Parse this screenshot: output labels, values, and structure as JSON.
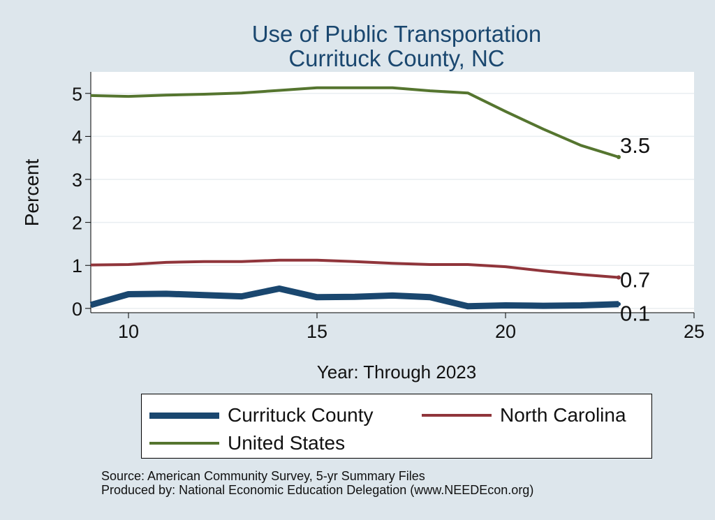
{
  "chart_data": {
    "type": "line",
    "title": "Use of Public Transportation",
    "subtitle": "Currituck County, NC",
    "xlabel": "Year: Through 2023",
    "ylabel": "Percent",
    "xlim": [
      9,
      25
    ],
    "ylim": [
      -0.1,
      5.5
    ],
    "xticks": [
      10,
      15,
      20,
      25
    ],
    "yticks": [
      0,
      1,
      2,
      3,
      4,
      5
    ],
    "grid": true,
    "legend_position": "bottom",
    "series": [
      {
        "name": "Currituck County",
        "color": "#1a476f",
        "width": 9,
        "x": [
          9,
          10,
          11,
          12,
          13,
          14,
          15,
          16,
          17,
          18,
          19,
          20,
          21,
          22,
          23
        ],
        "values": [
          0.08,
          0.33,
          0.34,
          0.31,
          0.28,
          0.46,
          0.26,
          0.27,
          0.3,
          0.26,
          0.05,
          0.07,
          0.06,
          0.07,
          0.1
        ],
        "end_label": "0.1"
      },
      {
        "name": "North Carolina",
        "color": "#90353b",
        "width": 4,
        "x": [
          9,
          10,
          11,
          12,
          13,
          14,
          15,
          16,
          17,
          18,
          19,
          20,
          21,
          22,
          23
        ],
        "values": [
          1.01,
          1.02,
          1.07,
          1.09,
          1.09,
          1.12,
          1.12,
          1.09,
          1.05,
          1.02,
          1.02,
          0.97,
          0.87,
          0.79,
          0.72
        ],
        "end_label": "0.7"
      },
      {
        "name": "United States",
        "color": "#55752f",
        "width": 4,
        "x": [
          9,
          10,
          11,
          12,
          13,
          14,
          15,
          16,
          17,
          18,
          19,
          20,
          21,
          22,
          23
        ],
        "values": [
          4.95,
          4.93,
          4.96,
          4.98,
          5.01,
          5.07,
          5.13,
          5.13,
          5.13,
          5.06,
          5.01,
          4.58,
          4.17,
          3.79,
          3.52
        ],
        "end_label": "3.5"
      }
    ]
  },
  "source": {
    "line1": "Source: American Community Survey, 5-yr Summary Files",
    "line2": "Produced by: National Economic Education Delegation (www.NEEDEcon.org)"
  }
}
